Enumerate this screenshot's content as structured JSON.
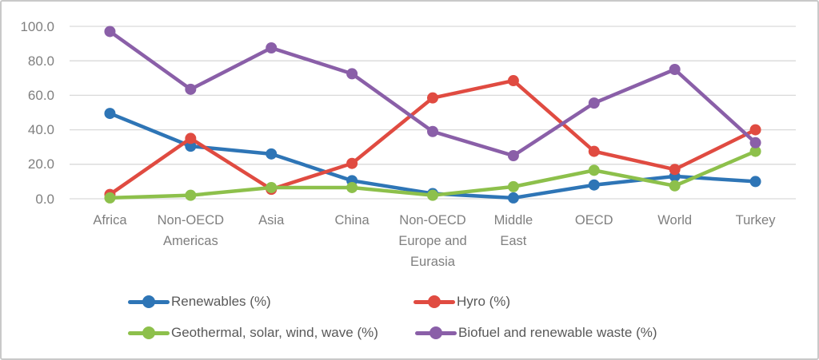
{
  "chart_data": {
    "type": "line",
    "title": "",
    "categories": [
      "Africa",
      "Non-OECD Americas",
      "Asia",
      "China",
      "Non-OECD Europe and Eurasia",
      "Middle East",
      "OECD",
      "World",
      "Turkey"
    ],
    "categories_display": [
      "Africa",
      "Non-OECD\nAmericas",
      "Asia",
      "China",
      "Non-OECD\nEurope and\nEurasia",
      "Middle\nEast",
      "OECD",
      "World",
      "Turkey"
    ],
    "series": [
      {
        "name": "Renewables (%)",
        "color": "#2E75B6",
        "values": [
          49.5,
          30.5,
          26.0,
          10.5,
          3.0,
          0.5,
          8.0,
          13.0,
          10.0
        ]
      },
      {
        "name": "Hyro (%)",
        "color": "#E04B41",
        "values": [
          2.5,
          35.0,
          5.5,
          20.5,
          58.5,
          68.5,
          27.5,
          17.0,
          40.0
        ]
      },
      {
        "name": "Geothermal, solar, wind, wave (%)",
        "color": "#8DC04B",
        "values": [
          0.5,
          2.0,
          6.5,
          6.5,
          2.0,
          7.0,
          16.5,
          7.5,
          27.5
        ]
      },
      {
        "name": "Biofuel and renewable waste (%)",
        "color": "#8A5FA8",
        "values": [
          97.0,
          63.5,
          87.5,
          72.5,
          39.0,
          25.0,
          55.5,
          75.0,
          32.5
        ]
      }
    ],
    "xlabel": "",
    "ylabel": "",
    "ylim": [
      0,
      100
    ],
    "yticks": [
      0,
      20,
      40,
      60,
      80,
      100
    ],
    "ytick_decimals": 1,
    "grid": true,
    "legend_position": "bottom"
  },
  "styles": {
    "grid_color": "#D9D9D9",
    "axis_text_color": "#7F7F7F",
    "legend_text_color": "#595959",
    "frame_border_color": "#C9C9C9",
    "background": "#FFFFFF"
  }
}
